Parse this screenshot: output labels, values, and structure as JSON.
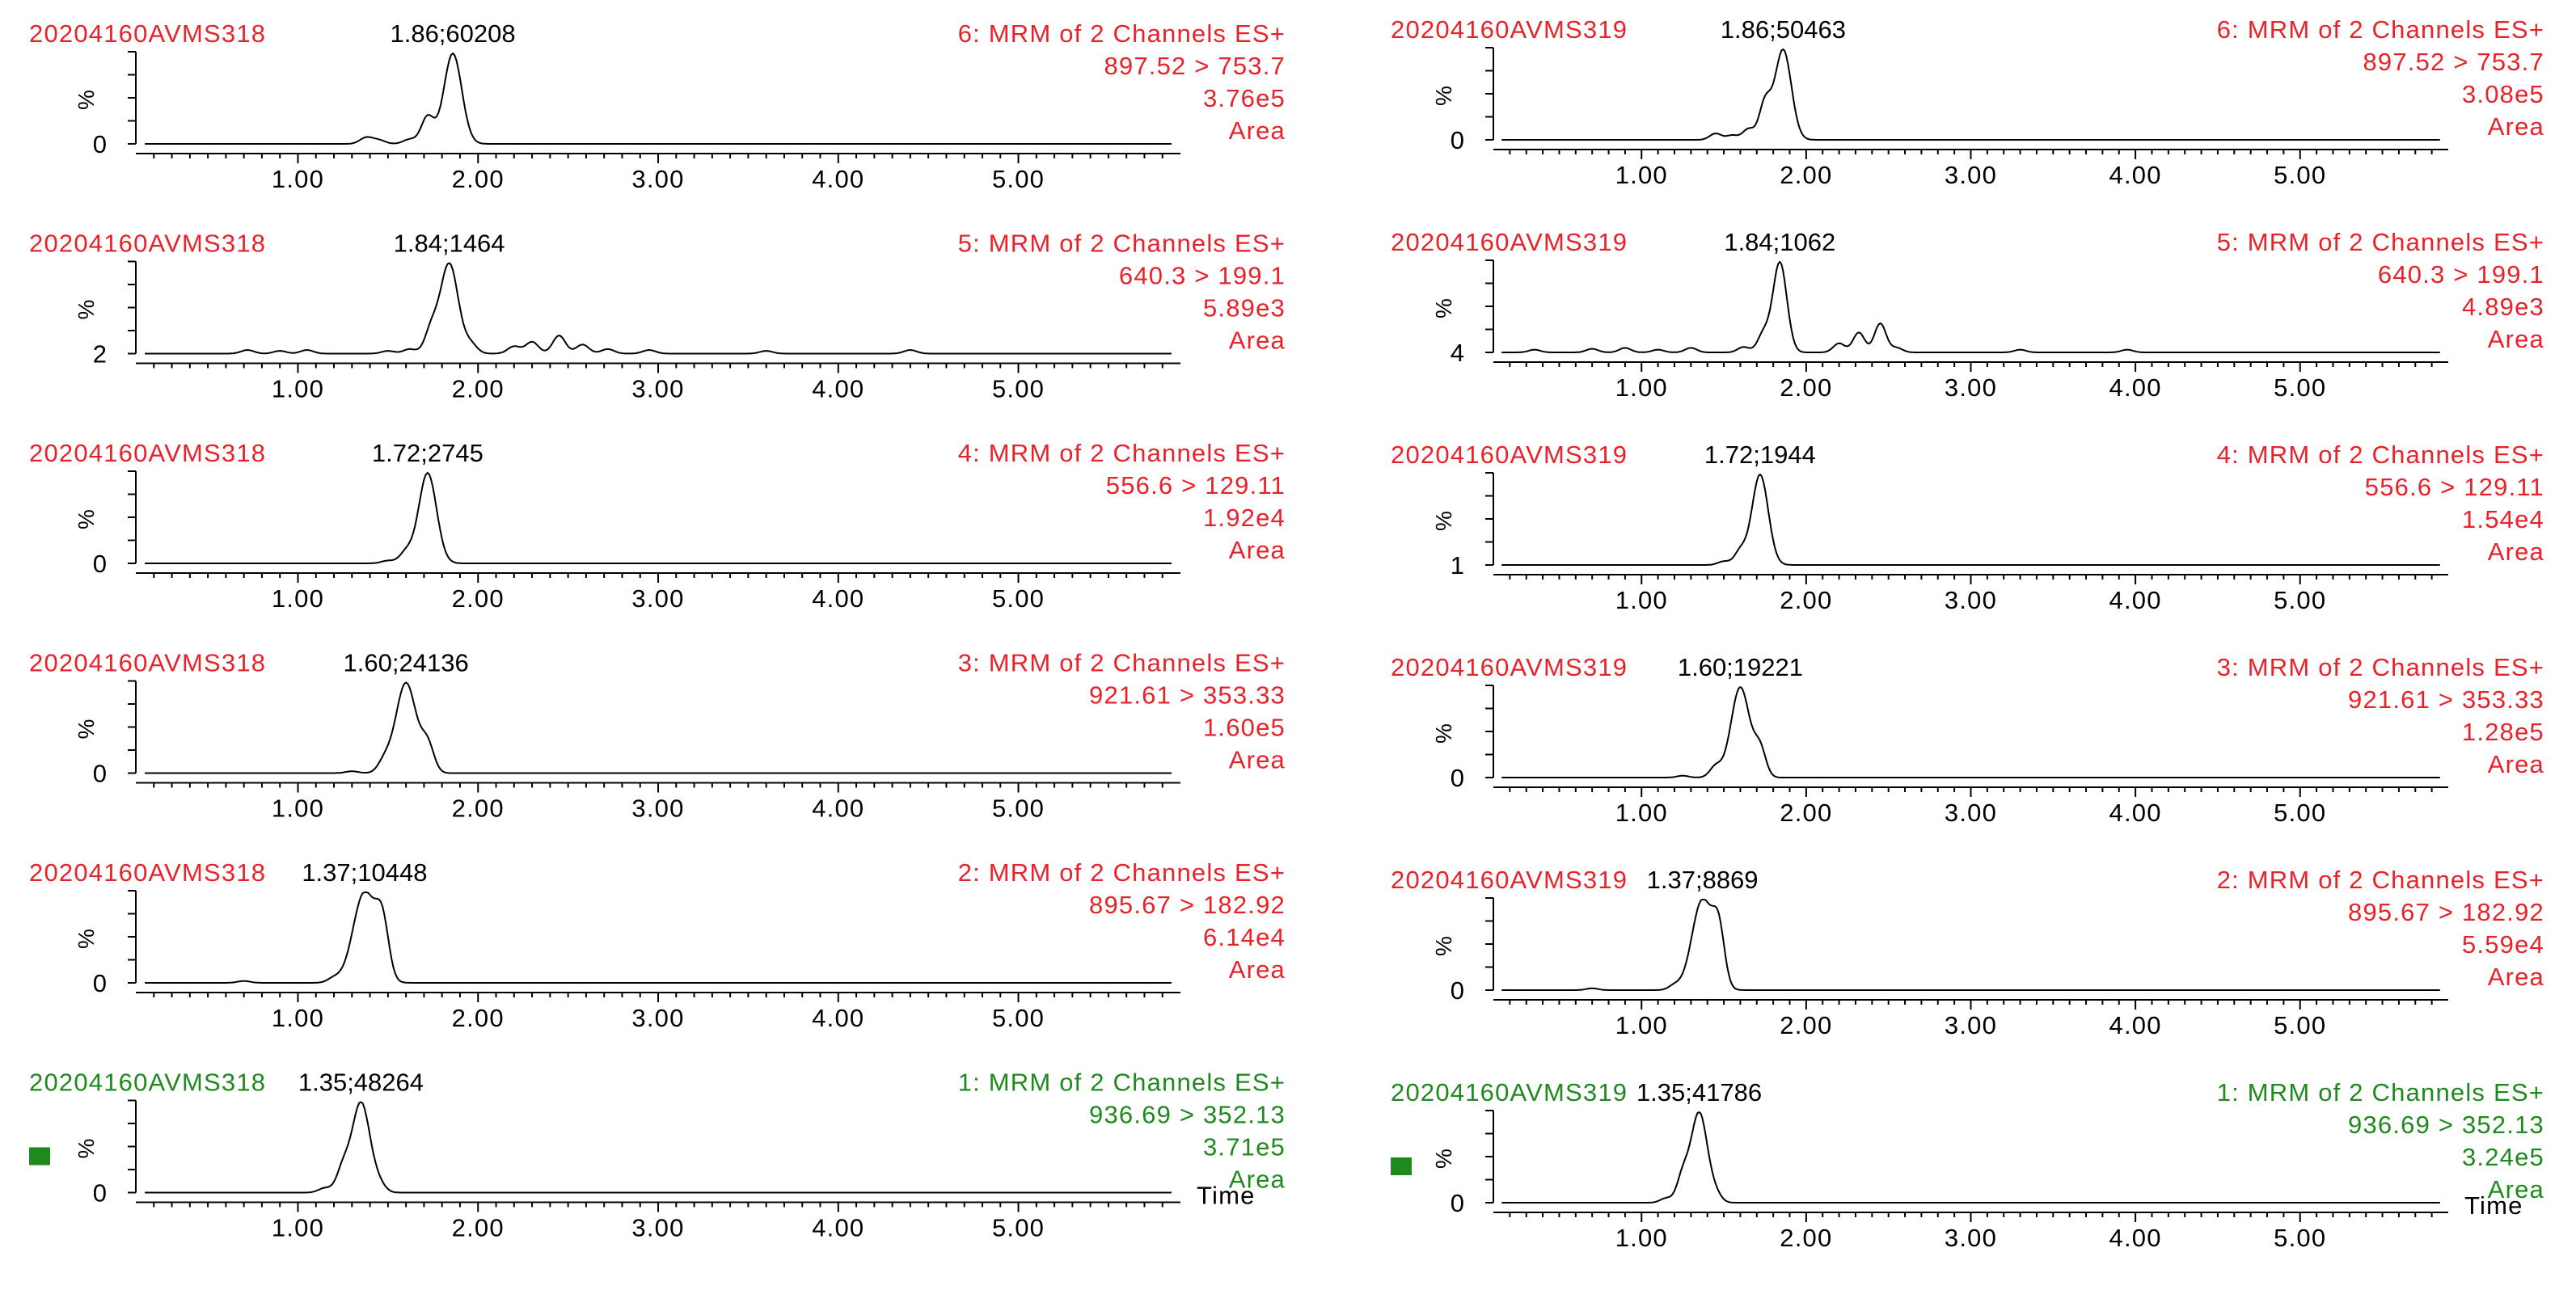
{
  "x_axis_label": "Time",
  "percent_label": "%",
  "colors": {
    "red": "#e8222a",
    "green": "#1e8a1e",
    "black": "#000000"
  },
  "columns": [
    {
      "sample": "20204160AVMS318",
      "panels": [
        {
          "header": "6: MRM of 2 Channels ES+",
          "transition": "897.52 > 753.7",
          "intensity": "3.76e5",
          "mode": "Area",
          "peak": "1.86;60208",
          "baseline": "0",
          "color": "red",
          "rt": 1.86,
          "width": 0.07,
          "bumps": [
            [
              1.38,
              0.07
            ],
            [
              1.45,
              0.04
            ],
            [
              1.62,
              0.05
            ],
            [
              1.72,
              0.3
            ]
          ]
        },
        {
          "header": "5: MRM of 2 Channels ES+",
          "transition": "640.3 > 199.1",
          "intensity": "5.89e3",
          "mode": "Area",
          "peak": "1.84;1464",
          "baseline": "2",
          "color": "red",
          "rt": 1.84,
          "width": 0.07,
          "bumps": [
            [
              0.72,
              0.04
            ],
            [
              0.9,
              0.03
            ],
            [
              1.05,
              0.04
            ],
            [
              1.5,
              0.03
            ],
            [
              1.62,
              0.05
            ],
            [
              1.74,
              0.25
            ],
            [
              1.96,
              0.1
            ],
            [
              2.2,
              0.08
            ],
            [
              2.3,
              0.13
            ],
            [
              2.45,
              0.2
            ],
            [
              2.58,
              0.1
            ],
            [
              2.72,
              0.05
            ],
            [
              2.95,
              0.04
            ],
            [
              3.6,
              0.03
            ],
            [
              4.4,
              0.04
            ]
          ]
        },
        {
          "header": "4: MRM of 2 Channels ES+",
          "transition": "556.6 > 129.11",
          "intensity": "1.92e4",
          "mode": "Area",
          "peak": "1.72;2745",
          "baseline": "0",
          "color": "red",
          "rt": 1.72,
          "width": 0.07,
          "bumps": [
            [
              1.5,
              0.03
            ],
            [
              1.6,
              0.12
            ]
          ]
        },
        {
          "header": "3: MRM of 2 Channels ES+",
          "transition": "921.61 > 353.33",
          "intensity": "1.60e5",
          "mode": "Area",
          "peak": "1.60;24136",
          "baseline": "0",
          "color": "red",
          "rt": 1.6,
          "width": 0.08,
          "bumps": [
            [
              1.3,
              0.02
            ],
            [
              1.48,
              0.12
            ],
            [
              1.72,
              0.3
            ]
          ]
        },
        {
          "header": "2: MRM of 2 Channels ES+",
          "transition": "895.67 > 182.92",
          "intensity": "6.14e4",
          "mode": "Area",
          "peak": "1.37;10448",
          "baseline": "0",
          "color": "red",
          "rt": 1.37,
          "width": 0.09,
          "bumps": [
            [
              0.7,
              0.02
            ],
            [
              1.2,
              0.05
            ],
            [
              1.47,
              0.55
            ]
          ]
        },
        {
          "header": "1: MRM of 2 Channels ES+",
          "transition": "936.69 > 352.13",
          "intensity": "3.71e5",
          "mode": "Area",
          "peak": "1.35;48264",
          "baseline": "0",
          "color": "green",
          "rt": 1.35,
          "width": 0.07,
          "bumps": [
            [
              1.15,
              0.05
            ],
            [
              1.25,
              0.25
            ],
            [
              1.45,
              0.08
            ]
          ]
        }
      ]
    },
    {
      "sample": "20204160AVMS319",
      "panels": [
        {
          "header": "6: MRM of 2 Channels ES+",
          "transition": "897.52 > 753.7",
          "intensity": "3.08e5",
          "mode": "Area",
          "peak": "1.86;50463",
          "baseline": "0",
          "color": "red",
          "rt": 1.86,
          "width": 0.07,
          "bumps": [
            [
              1.45,
              0.07
            ],
            [
              1.55,
              0.05
            ],
            [
              1.65,
              0.12
            ],
            [
              1.75,
              0.4
            ]
          ]
        },
        {
          "header": "5: MRM of 2 Channels ES+",
          "transition": "640.3 > 199.1",
          "intensity": "4.89e3",
          "mode": "Area",
          "peak": "1.84;1062",
          "baseline": "4",
          "color": "red",
          "rt": 1.84,
          "width": 0.06,
          "bumps": [
            [
              0.35,
              0.03
            ],
            [
              0.7,
              0.04
            ],
            [
              0.9,
              0.05
            ],
            [
              1.1,
              0.03
            ],
            [
              1.3,
              0.05
            ],
            [
              1.62,
              0.06
            ],
            [
              1.74,
              0.2
            ],
            [
              2.2,
              0.1
            ],
            [
              2.32,
              0.22
            ],
            [
              2.45,
              0.32
            ],
            [
              2.55,
              0.05
            ],
            [
              3.3,
              0.03
            ],
            [
              3.95,
              0.03
            ]
          ]
        },
        {
          "header": "4: MRM of 2 Channels ES+",
          "transition": "556.6 > 129.11",
          "intensity": "1.54e4",
          "mode": "Area",
          "peak": "1.72;1944",
          "baseline": "1",
          "color": "red",
          "rt": 1.72,
          "width": 0.07,
          "bumps": [
            [
              1.5,
              0.04
            ],
            [
              1.6,
              0.15
            ]
          ]
        },
        {
          "header": "3: MRM of 2 Channels ES+",
          "transition": "921.61 > 353.33",
          "intensity": "1.28e5",
          "mode": "Area",
          "peak": "1.60;19221",
          "baseline": "0",
          "color": "red",
          "rt": 1.6,
          "width": 0.08,
          "bumps": [
            [
              1.25,
              0.02
            ],
            [
              1.45,
              0.12
            ],
            [
              1.72,
              0.3
            ]
          ]
        },
        {
          "header": "2: MRM of 2 Channels ES+",
          "transition": "895.67 > 182.92",
          "intensity": "5.59e4",
          "mode": "Area",
          "peak": "1.37;8869",
          "baseline": "0",
          "color": "red",
          "rt": 1.37,
          "width": 0.09,
          "bumps": [
            [
              0.7,
              0.02
            ],
            [
              1.2,
              0.05
            ],
            [
              1.47,
              0.55
            ]
          ]
        },
        {
          "header": "1: MRM of 2 Channels ES+",
          "transition": "936.69 > 352.13",
          "intensity": "3.24e5",
          "mode": "Area",
          "peak": "1.35;41786",
          "baseline": "0",
          "color": "green",
          "rt": 1.35,
          "width": 0.07,
          "bumps": [
            [
              1.15,
              0.05
            ],
            [
              1.25,
              0.28
            ],
            [
              1.45,
              0.08
            ]
          ]
        }
      ]
    }
  ],
  "chart_data": {
    "type": "line",
    "x_ticks": [
      "1.00",
      "2.00",
      "3.00",
      "4.00",
      "5.00"
    ],
    "xlim": [
      0.1,
      5.9
    ],
    "ylim": [
      0,
      100
    ],
    "xlabel": "Time",
    "ylabel": "%",
    "series": [
      {
        "name": "20204160AVMS318 6: MRM of 2 Channels ES+ 897.52 > 753.7",
        "peak_rt": 1.86,
        "peak_height": 60208
      },
      {
        "name": "20204160AVMS318 5: MRM of 2 Channels ES+ 640.3 > 199.1",
        "peak_rt": 1.84,
        "peak_height": 1464
      },
      {
        "name": "20204160AVMS318 4: MRM of 2 Channels ES+ 556.6 > 129.11",
        "peak_rt": 1.72,
        "peak_height": 2745
      },
      {
        "name": "20204160AVMS318 3: MRM of 2 Channels ES+ 921.61 > 353.33",
        "peak_rt": 1.6,
        "peak_height": 24136
      },
      {
        "name": "20204160AVMS318 2: MRM of 2 Channels ES+ 895.67 > 182.92",
        "peak_rt": 1.37,
        "peak_height": 10448
      },
      {
        "name": "20204160AVMS318 1: MRM of 2 Channels ES+ 936.69 > 352.13",
        "peak_rt": 1.35,
        "peak_height": 48264
      },
      {
        "name": "20204160AVMS319 6: MRM of 2 Channels ES+ 897.52 > 753.7",
        "peak_rt": 1.86,
        "peak_height": 50463
      },
      {
        "name": "20204160AVMS319 5: MRM of 2 Channels ES+ 640.3 > 199.1",
        "peak_rt": 1.84,
        "peak_height": 1062
      },
      {
        "name": "20204160AVMS319 4: MRM of 2 Channels ES+ 556.6 > 129.11",
        "peak_rt": 1.72,
        "peak_height": 1944
      },
      {
        "name": "20204160AVMS319 3: MRM of 2 Channels ES+ 921.61 > 353.33",
        "peak_rt": 1.6,
        "peak_height": 19221
      },
      {
        "name": "20204160AVMS319 2: MRM of 2 Channels ES+ 895.67 > 182.92",
        "peak_rt": 1.37,
        "peak_height": 8869
      },
      {
        "name": "20204160AVMS319 1: MRM of 2 Channels ES+ 936.69 > 352.13",
        "peak_rt": 1.35,
        "peak_height": 41786
      }
    ]
  }
}
